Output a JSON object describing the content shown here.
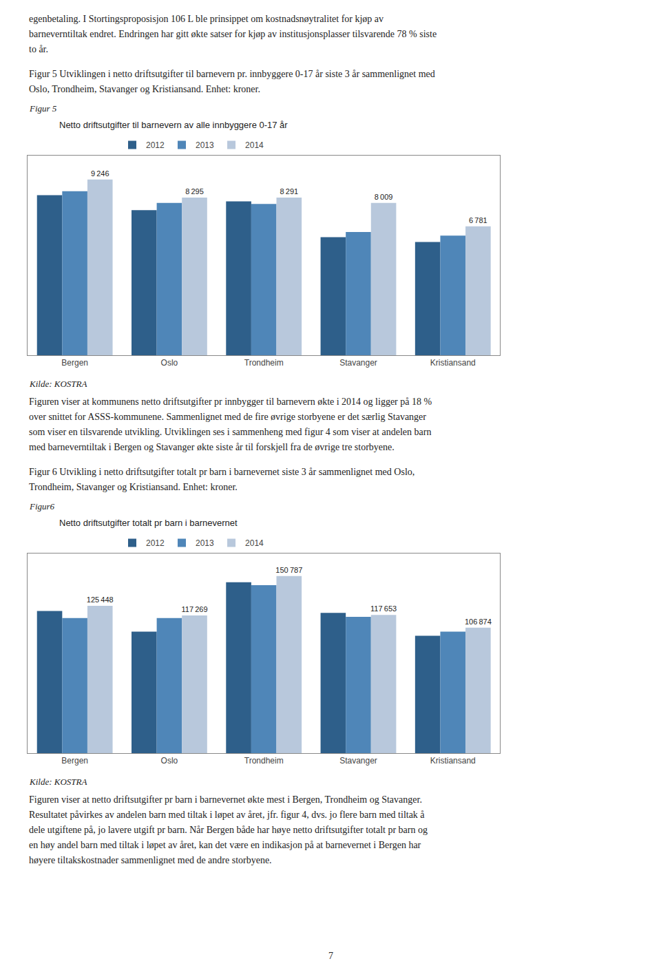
{
  "page_text": {
    "intro_lines": [
      "egenbetaling. I Stortingsproposisjon 106 L ble prinsippet om kostnadsnøytralitet for kjøp av",
      "barneverntiltak endret. Endringen har gitt økte satser for kjøp av institusjonsplasser tilsvarende 78 % siste",
      "to år."
    ],
    "figures": [
      {
        "caption_lines": [
          "Figur 5 Utviklingen i netto driftsutgifter til barnevern pr. innbyggere 0-17 år siste 3 år sammenlignet med",
          "Oslo, Trondheim, Stavanger og Kristiansand. Enhet: kroner."
        ],
        "label": "Figur 5",
        "source": "Kilde: KOSTRA",
        "desc_lines": [
          "Figuren viser at kommunens netto driftsutgifter pr innbygger til barnevern økte i 2014 og ligger på 18 %",
          "over snittet for ASSS-kommunene. Sammenlignet med de fire øvrige storbyene er det særlig Stavanger",
          "som viser en tilsvarende utvikling. Utviklingen ses i sammenheng med figur 4 som viser at andelen barn",
          "med barneverntiltak i Bergen og Stavanger økte siste år til forskjell fra de øvrige tre storbyene."
        ]
      },
      {
        "caption_lines": [
          "Figur 6 Utvikling i netto driftsutgifter totalt pr barn i barnevernet siste 3 år sammenlignet med Oslo,",
          "Trondheim, Stavanger og Kristiansand. Enhet: kroner."
        ],
        "label": "Figur6",
        "source": "Kilde: KOSTRA",
        "desc_lines": [
          "Figuren viser at netto driftsutgifter pr barn i barnevernet økte mest i Bergen, Trondheim og Stavanger.",
          "Resultatet påvirkes av andelen barn med tiltak i løpet av året, jfr. figur 4, dvs. jo flere barn med tiltak å",
          "dele utgiftene på, jo lavere utgift pr barn. Når Bergen både har høye netto driftsutgifter totalt pr barn og",
          "en høy andel barn med tiltak i løpet av året, kan det være en indikasjon på at barnevernet i Bergen har",
          "høyere tiltakskostnader sammenlignet med de andre storbyene."
        ]
      }
    ],
    "page_num": "7"
  },
  "chart_data": [
    {
      "type": "bar",
      "title": "Netto driftsutgifter til barnevern av alle innbyggere 0-17 år",
      "categories": [
        "Bergen",
        "Oslo",
        "Trondheim",
        "Stavanger",
        "Kristiansand"
      ],
      "series": [
        {
          "name": "2012",
          "color": "#2E5F8A",
          "values": [
            8420,
            7630,
            8090,
            6210,
            5960
          ]
        },
        {
          "name": "2013",
          "color": "#4F86B8",
          "values": [
            8630,
            8010,
            7960,
            6480,
            6290
          ]
        },
        {
          "name": "2014",
          "color": "#B8C8DC",
          "values": [
            9246,
            8295,
            8291,
            8009,
            6781
          ],
          "data_labels": true,
          "value_labels": [
            "9 246",
            "8 295",
            "8 291",
            "8 009",
            "6 781"
          ]
        }
      ],
      "ylim": [
        0,
        10500
      ],
      "grid": false,
      "tick_labels": "x"
    },
    {
      "type": "bar",
      "title": "Netto driftsutgifter totalt pr barn i barnevernet",
      "categories": [
        "Bergen",
        "Oslo",
        "Trondheim",
        "Stavanger",
        "Kristiansand"
      ],
      "series": [
        {
          "name": "2012",
          "color": "#2E5F8A",
          "values": [
            121000,
            103500,
            145500,
            119500,
            100000
          ]
        },
        {
          "name": "2013",
          "color": "#4F86B8",
          "values": [
            115000,
            115000,
            143000,
            116000,
            103500
          ]
        },
        {
          "name": "2014",
          "color": "#B8C8DC",
          "values": [
            125448,
            117269,
            150787,
            117653,
            106874
          ],
          "data_labels": true,
          "value_labels": [
            "125 448",
            "117 269",
            "150 787",
            "117 653",
            "106 874"
          ]
        }
      ],
      "ylim": [
        0,
        170000
      ],
      "grid": false,
      "tick_labels": "x"
    }
  ]
}
